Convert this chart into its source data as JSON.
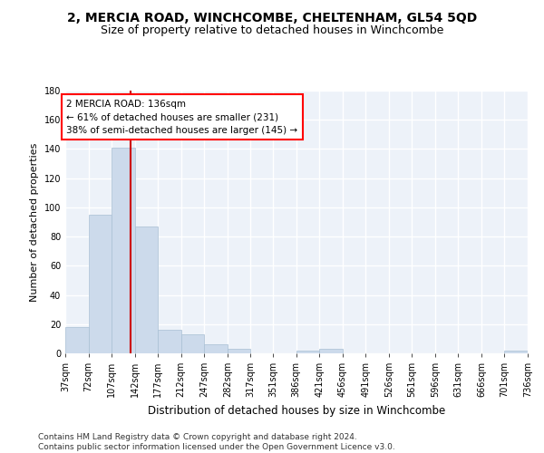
{
  "title": "2, MERCIA ROAD, WINCHCOMBE, CHELTENHAM, GL54 5QD",
  "subtitle": "Size of property relative to detached houses in Winchcombe",
  "xlabel": "Distribution of detached houses by size in Winchcombe",
  "ylabel": "Number of detached properties",
  "bar_color": "#ccdaeb",
  "bar_edge_color": "#a8bfd4",
  "background_color": "#edf2f9",
  "grid_color": "#ffffff",
  "annotation_text": "2 MERCIA ROAD: 136sqm\n← 61% of detached houses are smaller (231)\n38% of semi-detached houses are larger (145) →",
  "property_size": 136,
  "vline_color": "#cc0000",
  "bin_edges": [
    37,
    72,
    107,
    142,
    177,
    212,
    247,
    282,
    317,
    351,
    386,
    421,
    456,
    491,
    526,
    561,
    596,
    631,
    666,
    701,
    736
  ],
  "bin_labels": [
    "37sqm",
    "72sqm",
    "107sqm",
    "142sqm",
    "177sqm",
    "212sqm",
    "247sqm",
    "282sqm",
    "317sqm",
    "351sqm",
    "386sqm",
    "421sqm",
    "456sqm",
    "491sqm",
    "526sqm",
    "561sqm",
    "596sqm",
    "631sqm",
    "666sqm",
    "701sqm",
    "736sqm"
  ],
  "counts": [
    18,
    95,
    141,
    87,
    16,
    13,
    6,
    3,
    0,
    0,
    2,
    3,
    0,
    0,
    0,
    0,
    0,
    0,
    0,
    2
  ],
  "ylim": [
    0,
    180
  ],
  "yticks": [
    0,
    20,
    40,
    60,
    80,
    100,
    120,
    140,
    160,
    180
  ],
  "footer": "Contains HM Land Registry data © Crown copyright and database right 2024.\nContains public sector information licensed under the Open Government Licence v3.0.",
  "title_fontsize": 10,
  "subtitle_fontsize": 9,
  "xlabel_fontsize": 8.5,
  "ylabel_fontsize": 8,
  "tick_fontsize": 7,
  "annotation_fontsize": 7.5,
  "footer_fontsize": 6.5
}
